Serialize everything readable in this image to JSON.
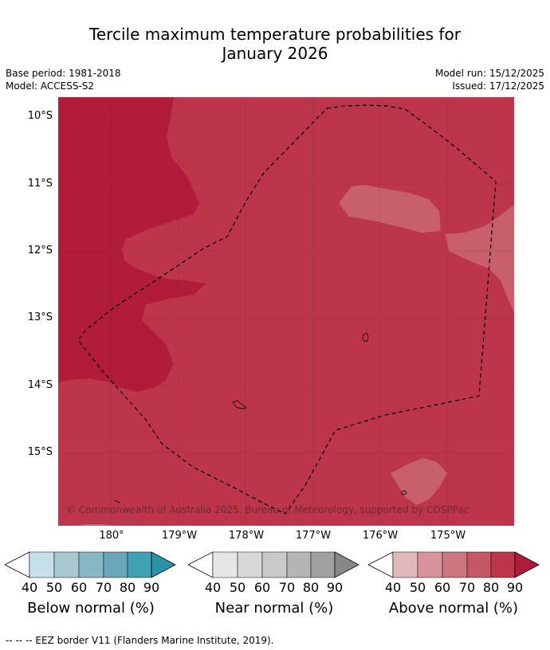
{
  "title_line1": "Tercile maximum temperature probabilities for",
  "title_line2": "January 2026",
  "meta": {
    "base_period": "Base period: 1981-2018",
    "model": "Model: ACCESS-S2",
    "model_run": "Model run: 15/12/2025",
    "issued": "Issued: 17/12/2025"
  },
  "map": {
    "lat_labels": [
      "10°S",
      "11°S",
      "12°S",
      "13°S",
      "14°S",
      "15°S"
    ],
    "lon_labels": [
      "180°",
      "179°W",
      "178°W",
      "177°W",
      "176°W",
      "175°W"
    ],
    "copyright": "© Commonwealth of Australia 2025, Bureau of Meteorology, supported by COSPPac",
    "colors": {
      "above_70": "#c8606b",
      "above_80": "#bd354b",
      "above_90": "#b01c3a"
    }
  },
  "colorbars": [
    {
      "label": "Below normal (%)",
      "ticks": [
        "40",
        "50",
        "60",
        "70",
        "80",
        "90"
      ],
      "colors": [
        "#ffffff",
        "#c5e0e8",
        "#a8c8cf",
        "#87b6c4",
        "#68a8b8",
        "#42a0b3",
        "#2a93aa"
      ]
    },
    {
      "label": "Near normal (%)",
      "ticks": [
        "40",
        "50",
        "60",
        "70",
        "80",
        "90"
      ],
      "colors": [
        "#ffffff",
        "#e6e6e6",
        "#d8d8d8",
        "#c9c9c9",
        "#b5b5b5",
        "#a0a0a0",
        "#888888"
      ]
    },
    {
      "label": "Above normal (%)",
      "ticks": [
        "40",
        "50",
        "60",
        "70",
        "80",
        "90"
      ],
      "colors": [
        "#ffffff",
        "#e1b9bd",
        "#d8949c",
        "#cc7680",
        "#c65764",
        "#bd354b",
        "#b01c3a"
      ]
    }
  ],
  "footnote": "-- -- -- EEZ border V11 (Flanders Marine Institute, 2019)."
}
